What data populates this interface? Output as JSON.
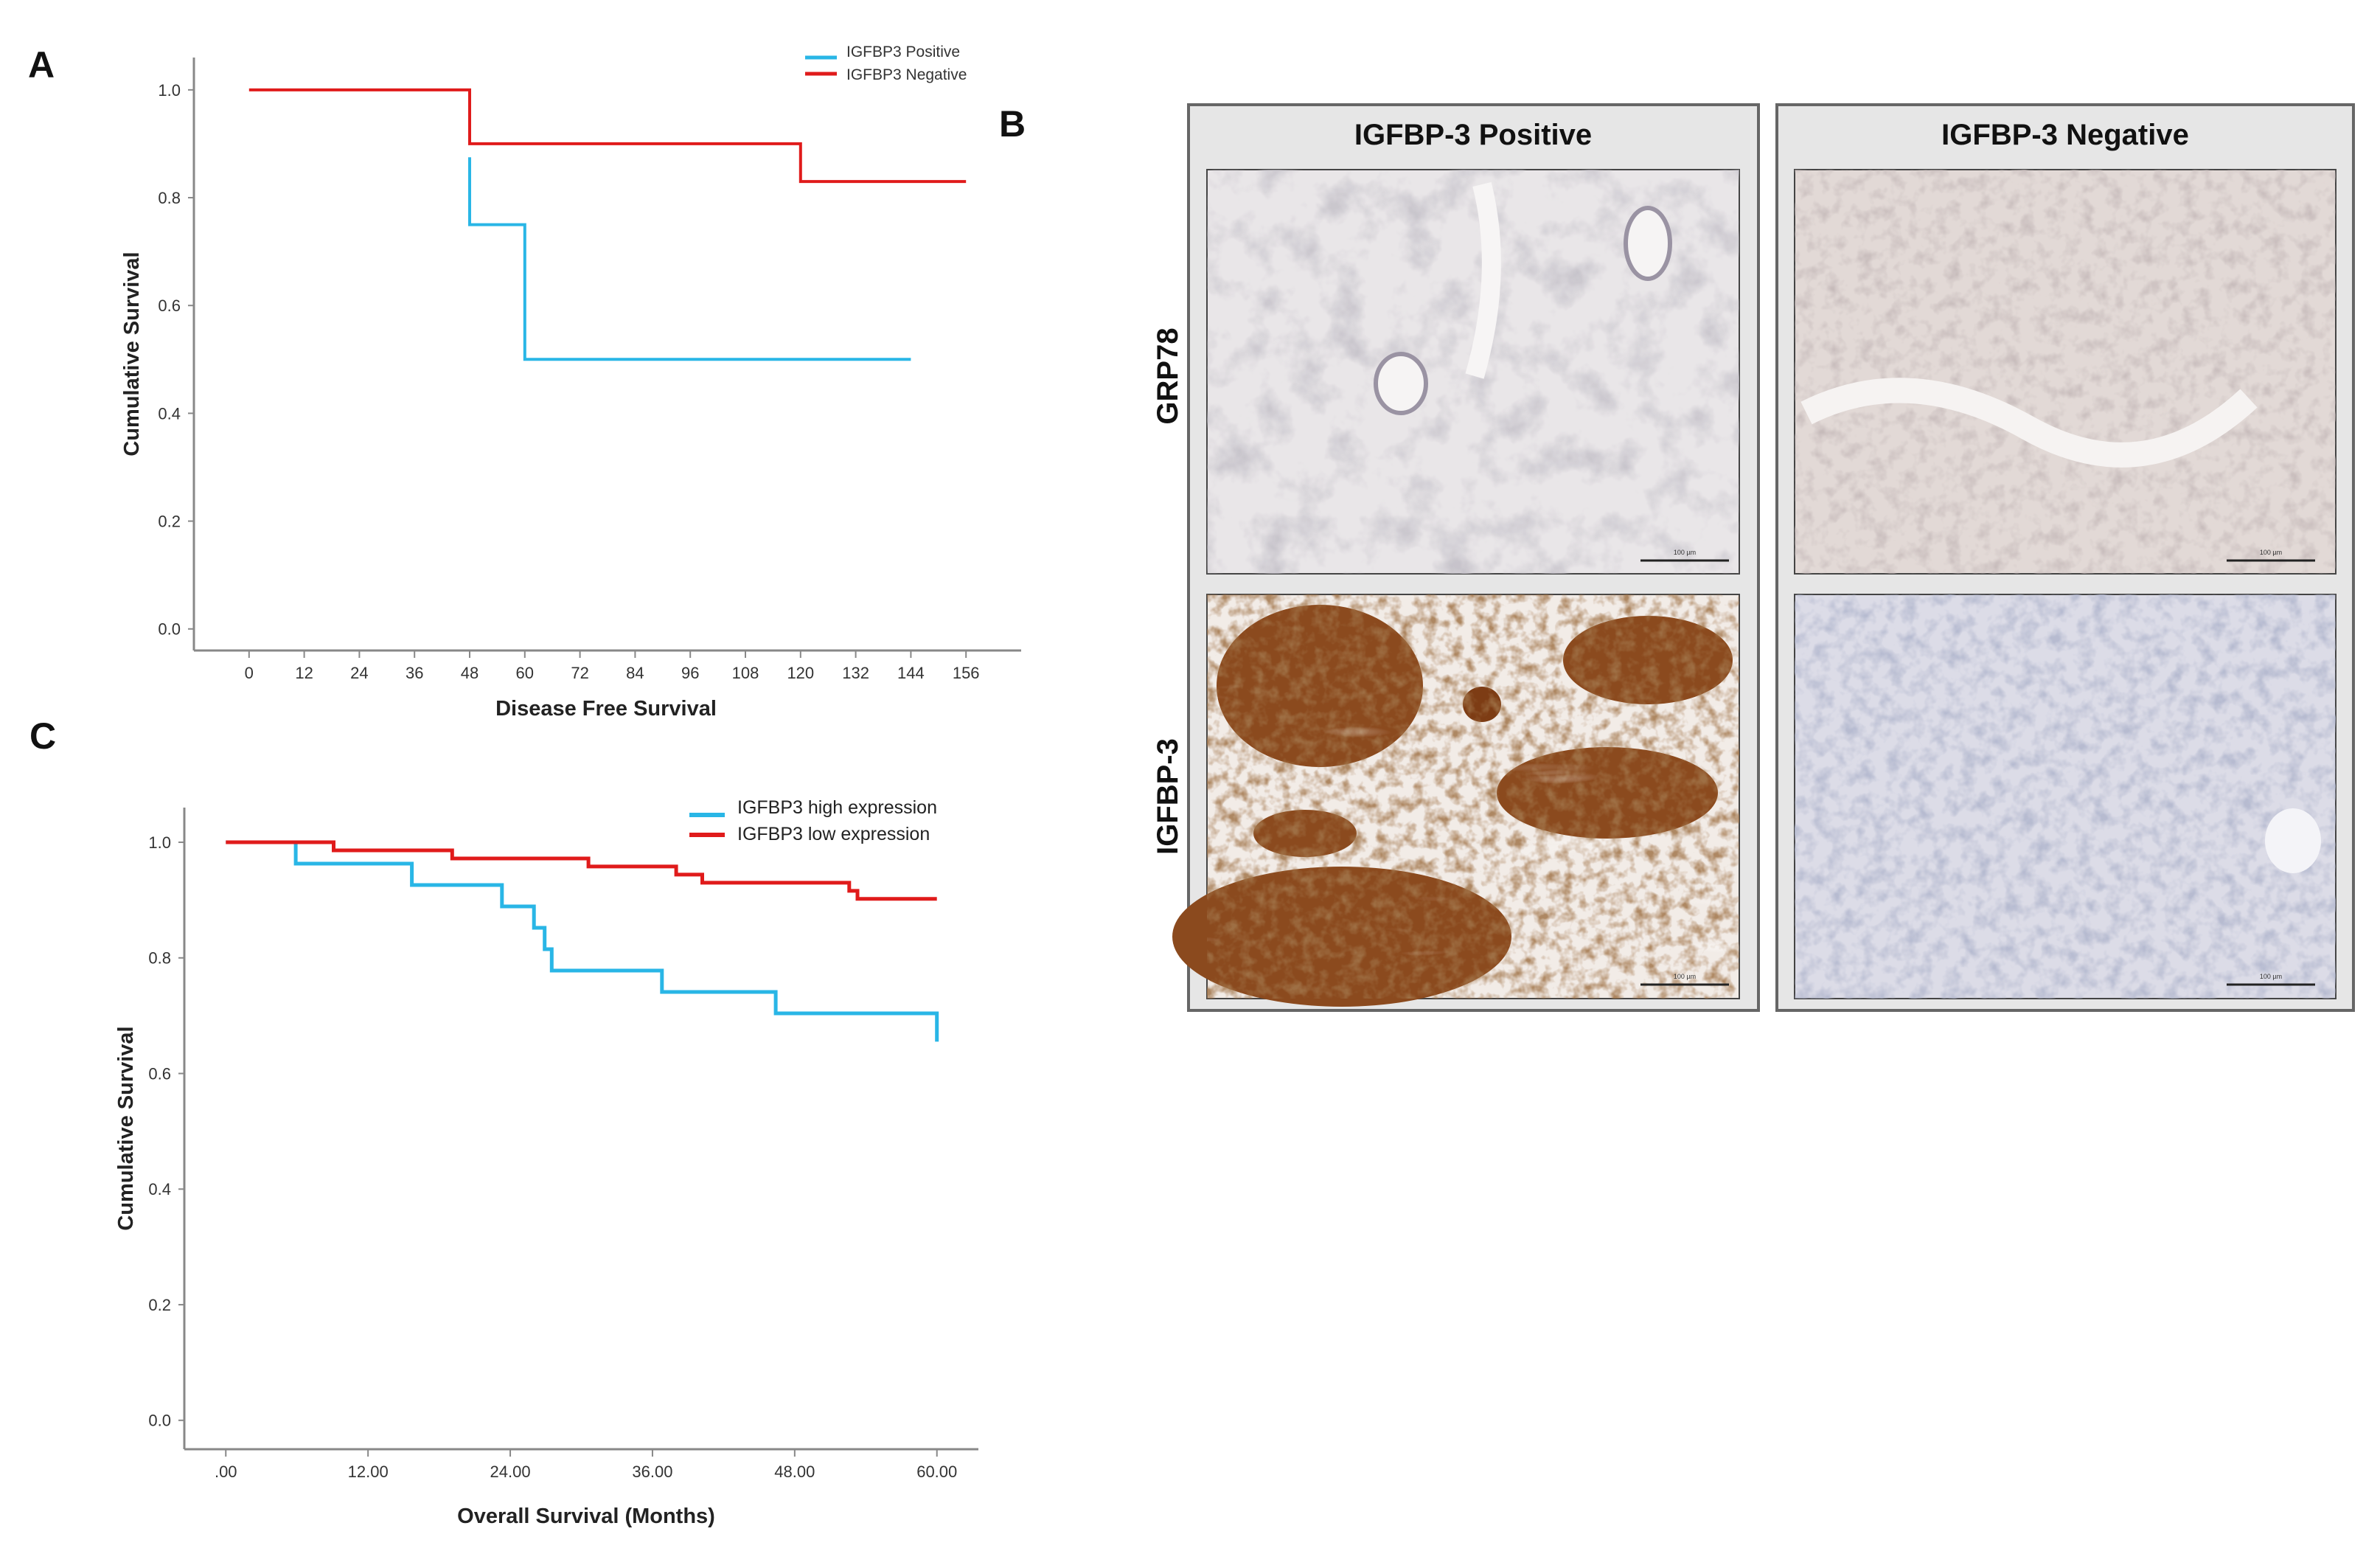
{
  "panel_labels": {
    "a": "A",
    "b": "B",
    "c": "C"
  },
  "colors": {
    "series_positive": "#29b6e6",
    "series_negative": "#e01b1b",
    "axis": "#888888",
    "panel_frame": "#666666",
    "panel_bg": "#e6e6e6",
    "stain_brown": "#8a4a1c",
    "stain_blue": "#c6cbdd"
  },
  "chart_data": [
    {
      "type": "line",
      "panel": "A",
      "xlabel": "Disease Free Survival",
      "ylabel": "Cumulative Survival",
      "xlim": [
        -12,
        168
      ],
      "ylim": [
        -0.04,
        1.06
      ],
      "x_ticks": [
        0,
        12,
        24,
        36,
        48,
        60,
        72,
        84,
        96,
        108,
        120,
        132,
        144,
        156
      ],
      "x_tick_labels": [
        "0",
        "12",
        "24",
        "36",
        "48",
        "60",
        "72",
        "84",
        "96",
        "108",
        "120",
        "132",
        "144",
        "156"
      ],
      "y_ticks": [
        0.0,
        0.2,
        0.4,
        0.6,
        0.8,
        1.0
      ],
      "y_tick_labels": [
        "0.0",
        "0.2",
        "0.4",
        "0.6",
        "0.8",
        "1.0"
      ],
      "legend_position": "top-right",
      "series": [
        {
          "name": "IGFBP3 Positive",
          "color": "#29b6e6",
          "x": [
            48,
            48,
            60,
            60,
            144
          ],
          "y": [
            0.875,
            0.75,
            0.75,
            0.5,
            0.5
          ]
        },
        {
          "name": "IGFBP3 Negative",
          "color": "#e01b1b",
          "x": [
            0,
            48,
            48,
            120,
            120,
            156
          ],
          "y": [
            1.0,
            1.0,
            0.9,
            0.9,
            0.83,
            0.83
          ]
        }
      ]
    },
    {
      "type": "line",
      "panel": "C",
      "xlabel": "Overall Survival (Months)",
      "ylabel": "Cumulative Survival",
      "xlim": [
        -3.5,
        63.5
      ],
      "ylim": [
        -0.05,
        1.06
      ],
      "x_ticks": [
        0,
        12,
        24,
        36,
        48,
        60
      ],
      "x_tick_labels": [
        ".00",
        "12.00",
        "24.00",
        "36.00",
        "48.00",
        "60.00"
      ],
      "y_ticks": [
        0.0,
        0.2,
        0.4,
        0.6,
        0.8,
        1.0
      ],
      "y_tick_labels": [
        "0.0",
        "0.2",
        "0.4",
        "0.6",
        "0.8",
        "1.0"
      ],
      "legend_position": "top-right",
      "series": [
        {
          "name": "IGFBP3 high expression",
          "color": "#29b6e6",
          "x": [
            0,
            5.9,
            5.9,
            15.7,
            15.7,
            23.3,
            23.3,
            26.0,
            26.0,
            26.9,
            26.9,
            27.5,
            27.5,
            36.8,
            36.8,
            46.4,
            46.4,
            60.0,
            60.0
          ],
          "y": [
            1.0,
            1.0,
            0.963,
            0.963,
            0.926,
            0.926,
            0.889,
            0.889,
            0.852,
            0.852,
            0.815,
            0.815,
            0.778,
            0.778,
            0.741,
            0.741,
            0.704,
            0.704,
            0.655
          ]
        },
        {
          "name": "IGFBP3 low expression",
          "color": "#e01b1b",
          "x": [
            0,
            9.1,
            9.1,
            19.1,
            19.1,
            30.6,
            30.6,
            38.0,
            38.0,
            40.2,
            40.2,
            52.6,
            52.6,
            53.3,
            53.3,
            60.0
          ],
          "y": [
            1.0,
            1.0,
            0.986,
            0.986,
            0.972,
            0.972,
            0.958,
            0.958,
            0.944,
            0.944,
            0.93,
            0.93,
            0.916,
            0.916,
            0.902,
            0.902
          ]
        }
      ]
    }
  ],
  "micrographs": {
    "col_headers": [
      "IGFBP-3 Positive",
      "IGFBP-3 Negative"
    ],
    "row_labels": [
      "GRP78",
      "IGFBP-3"
    ],
    "scale_bar_label": "100 µm"
  }
}
